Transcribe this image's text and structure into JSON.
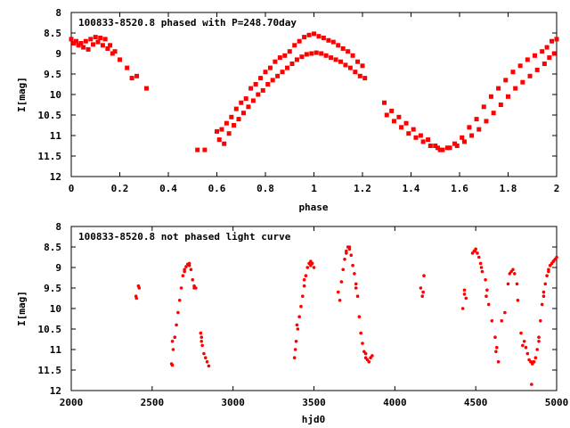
{
  "colors": {
    "points": "#ff0000",
    "axes": "#000000",
    "background": "#ffffff"
  },
  "chart_data": [
    {
      "type": "scatter",
      "title": "100833-8520.8 phased with P=248.70day",
      "xlabel": "phase",
      "ylabel": "I[mag]",
      "xlim": [
        0,
        2
      ],
      "ylim": [
        8,
        12
      ],
      "y_inverted": true,
      "grid": false,
      "legend": "none",
      "xticks": [
        "0",
        "0.2",
        "0.4",
        "0.6",
        "0.8",
        "1",
        "1.2",
        "1.4",
        "1.6",
        "1.8",
        "2"
      ],
      "yticks": [
        "8",
        "8.5",
        "9",
        "9.5",
        "10",
        "10.5",
        "11",
        "11.5",
        "12"
      ],
      "series": [
        {
          "x": [
            0.0,
            0.02,
            0.04,
            0.06,
            0.08,
            0.1,
            0.12,
            0.14,
            0.16,
            0.18,
            0.2,
            0.23,
            0.25,
            0.27,
            0.31,
            0.52,
            0.55,
            0.6,
            0.62,
            0.64,
            0.66,
            0.68,
            0.7,
            0.72,
            0.74,
            0.76,
            0.78,
            0.8,
            0.82,
            0.84,
            0.86,
            0.88,
            0.9,
            0.92,
            0.94,
            0.96,
            0.98,
            1.0,
            1.02,
            1.04,
            1.06,
            1.08,
            1.1,
            1.12,
            1.14,
            1.16,
            1.18,
            1.2,
            1.29,
            1.32,
            1.35,
            1.38,
            1.41,
            1.44,
            1.47,
            1.5,
            1.52,
            1.55,
            1.58,
            1.61,
            1.64,
            1.67,
            1.7,
            1.73,
            1.76,
            1.79,
            1.82,
            1.85,
            1.88,
            1.91,
            1.94,
            1.96,
            1.98,
            2.0
          ],
          "y": [
            8.65,
            8.7,
            8.75,
            8.7,
            8.65,
            8.6,
            8.62,
            8.65,
            8.8,
            8.95,
            9.15,
            9.35,
            9.6,
            9.55,
            9.85,
            11.35,
            11.35,
            10.9,
            10.85,
            10.7,
            10.55,
            10.35,
            10.2,
            10.1,
            9.85,
            9.75,
            9.6,
            9.45,
            9.35,
            9.2,
            9.1,
            9.05,
            8.95,
            8.8,
            8.7,
            8.6,
            8.55,
            8.52,
            8.58,
            8.62,
            8.68,
            8.72,
            8.8,
            8.88,
            8.95,
            9.05,
            9.2,
            9.3,
            10.2,
            10.4,
            10.55,
            10.7,
            10.85,
            11.0,
            11.1,
            11.25,
            11.35,
            11.3,
            11.2,
            11.05,
            10.8,
            10.6,
            10.3,
            10.05,
            9.85,
            9.65,
            9.45,
            9.3,
            9.15,
            9.05,
            8.95,
            8.85,
            8.7,
            8.65
          ]
        },
        {
          "x": [
            0.01,
            0.03,
            0.05,
            0.07,
            0.09,
            0.11,
            0.13,
            0.15,
            0.17,
            0.61,
            0.63,
            0.65,
            0.67,
            0.69,
            0.71,
            0.73,
            0.75,
            0.77,
            0.79,
            0.81,
            0.83,
            0.85,
            0.87,
            0.89,
            0.91,
            0.93,
            0.95,
            0.97,
            0.99,
            1.01,
            1.03,
            1.05,
            1.07,
            1.09,
            1.11,
            1.13,
            1.15,
            1.17,
            1.19,
            1.21,
            1.3,
            1.33,
            1.36,
            1.39,
            1.42,
            1.45,
            1.48,
            1.51,
            1.53,
            1.56,
            1.59,
            1.62,
            1.65,
            1.68,
            1.71,
            1.74,
            1.77,
            1.8,
            1.83,
            1.86,
            1.89,
            1.92,
            1.95,
            1.97,
            1.99
          ],
          "y": [
            8.75,
            8.8,
            8.85,
            8.9,
            8.78,
            8.72,
            8.8,
            8.88,
            9.0,
            11.1,
            11.2,
            10.95,
            10.75,
            10.6,
            10.45,
            10.3,
            10.15,
            10.0,
            9.9,
            9.75,
            9.65,
            9.55,
            9.45,
            9.35,
            9.25,
            9.15,
            9.08,
            9.02,
            9.0,
            8.98,
            9.0,
            9.05,
            9.1,
            9.15,
            9.2,
            9.28,
            9.35,
            9.45,
            9.55,
            9.6,
            10.5,
            10.65,
            10.8,
            10.95,
            11.05,
            11.15,
            11.25,
            11.3,
            11.35,
            11.3,
            11.25,
            11.15,
            11.0,
            10.85,
            10.65,
            10.45,
            10.25,
            10.05,
            9.85,
            9.7,
            9.55,
            9.4,
            9.25,
            9.1,
            9.0
          ]
        }
      ]
    },
    {
      "type": "scatter",
      "title": "100833-8520.8 not phased light curve",
      "xlabel": "hjd0",
      "ylabel": "I[mag]",
      "xlim": [
        2000,
        5000
      ],
      "ylim": [
        8,
        12
      ],
      "y_inverted": true,
      "grid": false,
      "legend": "none",
      "xticks": [
        "2000",
        "2500",
        "3000",
        "3500",
        "4000",
        "4500",
        "5000"
      ],
      "yticks": [
        "8",
        "8.5",
        "9",
        "9.5",
        "10",
        "10.5",
        "11",
        "11.5",
        "12"
      ],
      "series": [
        {
          "x": [
            2400,
            2403,
            2415,
            2420,
            2620,
            2625,
            2630,
            2640,
            2650,
            2660,
            2670,
            2680,
            2690,
            2700,
            2710,
            2720,
            2730,
            2740,
            2750,
            2760,
            2770,
            2800,
            2805,
            2810,
            2820,
            2830,
            2840,
            2850,
            3380,
            3385,
            3390,
            3400,
            3410,
            3420,
            3430,
            3440,
            3450,
            3460,
            3470,
            3480,
            3490,
            3500,
            3650,
            3660,
            3670,
            3680,
            3690,
            3700,
            3710,
            3720,
            3730,
            3740,
            3750,
            3760,
            3770,
            3780,
            3790,
            3800,
            3810,
            3820,
            3830,
            3840,
            3850,
            3860,
            4160,
            4170,
            4180,
            4420,
            4430,
            4440,
            4480,
            4490,
            4500,
            4510,
            4520,
            4530,
            4540,
            4560,
            4570,
            4580,
            4620,
            4630,
            4640,
            4660,
            4680,
            4700,
            4720,
            4730,
            4740,
            4760,
            4780,
            4800,
            4810,
            4820,
            4830,
            4840,
            4850,
            4860,
            4870,
            4880,
            4890,
            4900,
            4910,
            4920,
            4930,
            4940,
            4950,
            4960,
            4970,
            4980,
            4990,
            5000
          ],
          "y": [
            9.7,
            9.75,
            9.45,
            9.5,
            11.35,
            11.38,
            11.0,
            10.7,
            10.4,
            10.1,
            9.8,
            9.5,
            9.2,
            9.05,
            8.98,
            8.92,
            8.95,
            9.05,
            9.3,
            9.5,
            9.5,
            10.6,
            10.7,
            10.9,
            11.1,
            11.2,
            11.3,
            11.4,
            11.2,
            11.0,
            10.8,
            10.5,
            10.2,
            9.95,
            9.7,
            9.45,
            9.2,
            9.0,
            8.9,
            8.85,
            8.9,
            9.0,
            9.6,
            9.8,
            9.35,
            9.05,
            8.8,
            8.6,
            8.5,
            8.55,
            8.7,
            8.95,
            9.15,
            9.4,
            9.7,
            10.2,
            10.6,
            10.85,
            11.05,
            11.2,
            11.25,
            11.3,
            11.2,
            11.15,
            9.5,
            9.7,
            9.2,
            10.0,
            9.55,
            9.75,
            8.65,
            8.6,
            8.55,
            8.65,
            8.75,
            8.9,
            9.1,
            9.3,
            9.55,
            9.9,
            10.7,
            10.95,
            11.3,
            10.3,
            10.1,
            9.4,
            9.1,
            9.05,
            9.15,
            9.8,
            10.6,
            10.8,
            10.95,
            11.1,
            11.25,
            11.3,
            11.35,
            11.3,
            11.2,
            11.0,
            10.7,
            10.3,
            9.9,
            9.6,
            9.4,
            9.2,
            9.05,
            8.95,
            8.9,
            8.85,
            8.8,
            8.75
          ]
        },
        {
          "x": [
            2625,
            2700,
            2730,
            2760,
            2805,
            3395,
            3440,
            3480,
            3700,
            3720,
            3760,
            3820,
            4175,
            4430,
            4495,
            4535,
            4565,
            4600,
            4625,
            4710,
            4755,
            4790,
            4845,
            4855,
            4890,
            4920,
            4950,
            4980
          ],
          "y": [
            10.8,
            9.1,
            8.9,
            9.45,
            10.8,
            10.4,
            9.3,
            8.95,
            8.65,
            8.5,
            9.5,
            11.1,
            9.6,
            9.65,
            8.6,
            9.0,
            9.7,
            10.3,
            11.05,
            9.15,
            9.4,
            10.9,
            11.85,
            11.3,
            10.8,
            9.7,
            9.1,
            8.85
          ]
        }
      ]
    }
  ]
}
